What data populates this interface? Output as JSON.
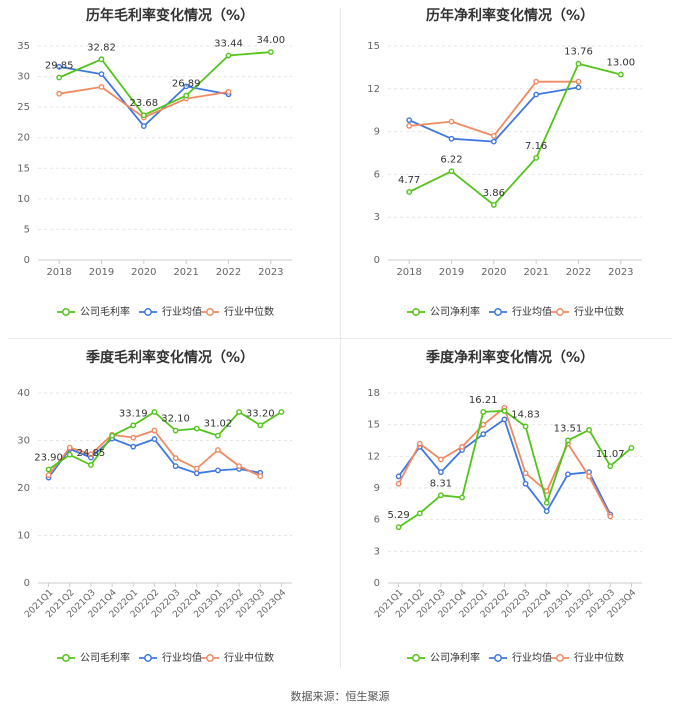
{
  "source_note": "数据来源：恒生聚源",
  "chart_data": [
    {
      "type": "line",
      "title": "历年毛利率变化情况（%）",
      "categories": [
        "2018",
        "2019",
        "2020",
        "2021",
        "2022",
        "2023"
      ],
      "ylim": [
        0,
        35
      ],
      "yticks": [
        0,
        5,
        10,
        15,
        20,
        25,
        30,
        35
      ],
      "grid": true,
      "legend_position": "bottom",
      "series": [
        {
          "name": "公司毛利率",
          "color": "#52c41a",
          "values": [
            29.85,
            32.82,
            23.68,
            26.89,
            33.44,
            34.0
          ],
          "labels": [
            "29.85",
            "32.82",
            "23.68",
            "26.89",
            "33.44",
            "34.00"
          ]
        },
        {
          "name": "行业均值",
          "color": "#3f78e0",
          "values": [
            31.6,
            30.4,
            21.9,
            28.4,
            27.1,
            null
          ]
        },
        {
          "name": "行业中位数",
          "color": "#f08a62",
          "values": [
            27.2,
            28.3,
            23.3,
            26.4,
            27.5,
            null
          ]
        }
      ]
    },
    {
      "type": "line",
      "title": "历年净利率变化情况（%）",
      "categories": [
        "2018",
        "2019",
        "2020",
        "2021",
        "2022",
        "2023"
      ],
      "ylim": [
        0,
        15
      ],
      "yticks": [
        0,
        3,
        6,
        9,
        12,
        15
      ],
      "grid": true,
      "legend_position": "bottom",
      "series": [
        {
          "name": "公司净利率",
          "color": "#52c41a",
          "values": [
            4.77,
            6.22,
            3.86,
            7.16,
            13.76,
            13.0
          ],
          "labels": [
            "4.77",
            "6.22",
            "3.86",
            "7.16",
            "13.76",
            "13.00"
          ]
        },
        {
          "name": "行业均值",
          "color": "#3f78e0",
          "values": [
            9.8,
            8.5,
            8.3,
            11.6,
            12.1,
            null
          ]
        },
        {
          "name": "行业中位数",
          "color": "#f08a62",
          "values": [
            9.4,
            9.7,
            8.7,
            12.5,
            12.5,
            null
          ]
        }
      ]
    },
    {
      "type": "line",
      "title": "季度毛利率变化情况（%）",
      "categories": [
        "2021Q1",
        "2021Q2",
        "2021Q3",
        "2021Q4",
        "2022Q1",
        "2022Q2",
        "2022Q3",
        "2022Q4",
        "2023Q1",
        "2023Q2",
        "2023Q3",
        "2023Q4"
      ],
      "ylim": [
        0,
        40
      ],
      "yticks": [
        0,
        10,
        20,
        30,
        40
      ],
      "grid": true,
      "legend_position": "bottom",
      "series": [
        {
          "name": "公司毛利率",
          "color": "#52c41a",
          "values": [
            23.9,
            27.0,
            24.85,
            31.0,
            33.19,
            36.0,
            32.1,
            32.5,
            31.02,
            36.0,
            33.2,
            36.0
          ],
          "labels": [
            "23.90",
            "",
            "24.85",
            "",
            "33.19",
            "",
            "32.10",
            "",
            "31.02",
            "",
            "33.20",
            ""
          ]
        },
        {
          "name": "行业均值",
          "color": "#3f78e0",
          "values": [
            22.2,
            28.2,
            26.4,
            30.4,
            28.7,
            30.3,
            24.6,
            23.1,
            23.7,
            24.0,
            23.2,
            null
          ]
        },
        {
          "name": "行业中位数",
          "color": "#f08a62",
          "values": [
            22.7,
            28.5,
            27.1,
            31.2,
            30.6,
            32.1,
            26.3,
            24.1,
            28.0,
            24.6,
            22.5,
            null
          ]
        }
      ]
    },
    {
      "type": "line",
      "title": "季度净利率变化情况（%）",
      "categories": [
        "2021Q1",
        "2021Q2",
        "2021Q3",
        "2021Q4",
        "2022Q1",
        "2022Q2",
        "2022Q3",
        "2022Q4",
        "2023Q1",
        "2023Q2",
        "2023Q3",
        "2023Q4"
      ],
      "ylim": [
        0,
        18
      ],
      "yticks": [
        0,
        3,
        6,
        9,
        12,
        15,
        18
      ],
      "grid": true,
      "legend_position": "bottom",
      "series": [
        {
          "name": "公司净利率",
          "color": "#52c41a",
          "values": [
            5.29,
            6.6,
            8.31,
            8.1,
            16.21,
            16.3,
            14.83,
            7.6,
            13.51,
            14.5,
            11.07,
            12.8
          ],
          "labels": [
            "5.29",
            "",
            "8.31",
            "",
            "16.21",
            "",
            "14.83",
            "",
            "13.51",
            "",
            "11.07",
            ""
          ]
        },
        {
          "name": "行业均值",
          "color": "#3f78e0",
          "values": [
            10.1,
            12.9,
            10.5,
            12.6,
            14.1,
            15.5,
            9.4,
            6.8,
            10.3,
            10.5,
            6.5,
            null
          ]
        },
        {
          "name": "行业中位数",
          "color": "#f08a62",
          "values": [
            9.4,
            13.2,
            11.7,
            12.9,
            15.0,
            16.6,
            10.4,
            8.7,
            13.2,
            10.1,
            6.3,
            null
          ]
        }
      ]
    }
  ]
}
